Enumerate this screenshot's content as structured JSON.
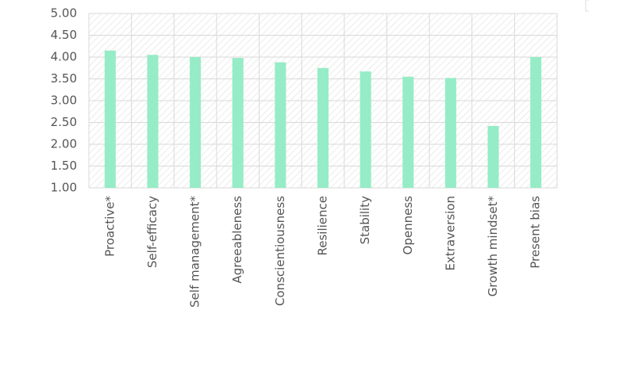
{
  "chart_data": {
    "type": "bar",
    "categories": [
      "Proactive*",
      "Self-efficacy",
      "Self management*",
      "Agreeableness",
      "Conscientiousness",
      "Resilience",
      "Stability",
      "Openness",
      "Extraversion",
      "Growth mindset*",
      "Present bias"
    ],
    "values": [
      4.15,
      4.05,
      4.0,
      3.98,
      3.88,
      3.75,
      3.67,
      3.55,
      3.52,
      2.42,
      4.0
    ],
    "color": "#96ecc6",
    "ylim": [
      1,
      5
    ],
    "yticks": [
      {
        "value": 1,
        "label": "1.00"
      },
      {
        "value": 1.5,
        "label": "1.50"
      },
      {
        "value": 2,
        "label": "2.00"
      },
      {
        "value": 2.5,
        "label": "2.50"
      },
      {
        "value": 3,
        "label": "3.00"
      },
      {
        "value": 3.5,
        "label": "3.50"
      },
      {
        "value": 4,
        "label": "4.00"
      },
      {
        "value": 4.5,
        "label": "4.50"
      },
      {
        "value": 5,
        "label": "5.00"
      }
    ],
    "grid": true
  }
}
